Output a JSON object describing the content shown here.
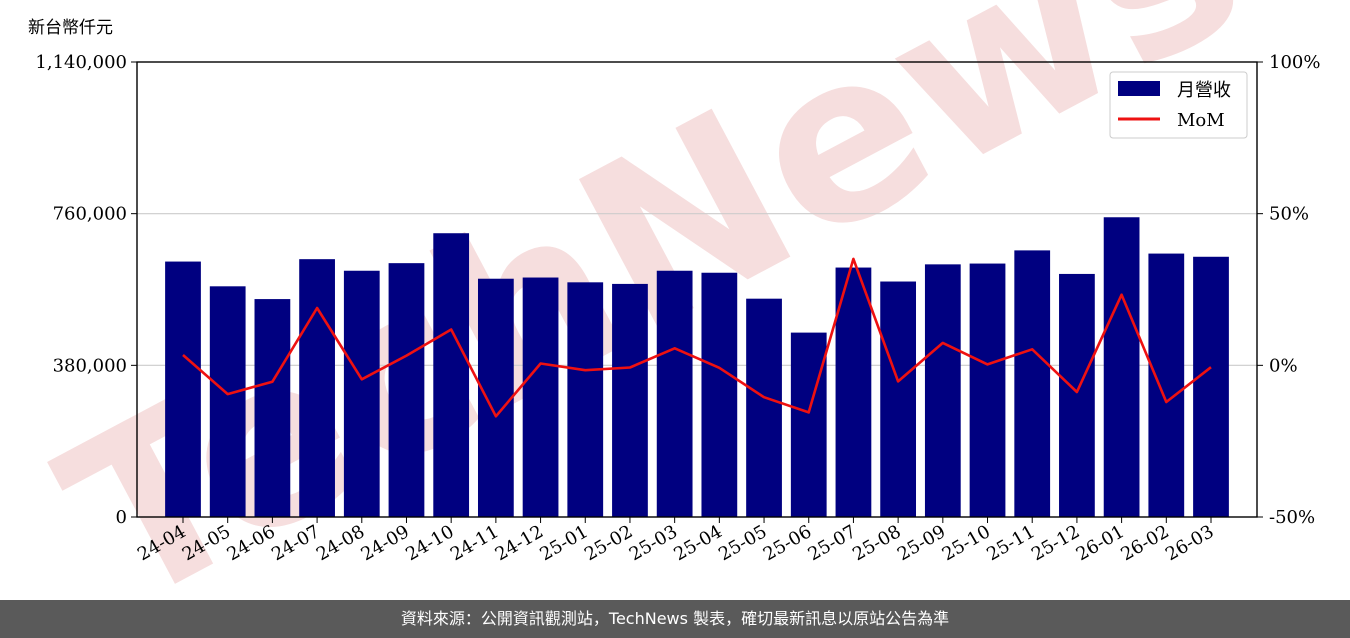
{
  "unit_label": "新台幣仟元",
  "watermark": "TechNews",
  "footer_text": "資料來源：公開資訊觀測站，TechNews 製表，確切最新訊息以原站公告為準",
  "colors": {
    "bar": "#000080",
    "line": "#ee1111",
    "grid": "#cccccc",
    "footer_bg": "#5a5a5a",
    "watermark": "#f6dede"
  },
  "chart_data": {
    "type": "bar",
    "categories": [
      "24-04",
      "24-05",
      "24-06",
      "24-07",
      "24-08",
      "24-09",
      "24-10",
      "24-11",
      "24-12",
      "25-01",
      "25-02",
      "25-03",
      "25-04",
      "25-05",
      "25-06",
      "25-07",
      "25-08",
      "25-09",
      "25-10",
      "25-11",
      "25-12",
      "26-01",
      "26-02",
      "26-03"
    ],
    "series": [
      {
        "name": "月營收",
        "type": "bar",
        "axis": "left",
        "values": [
          640000,
          578000,
          546000,
          646000,
          617000,
          636000,
          711000,
          597000,
          600000,
          588000,
          584000,
          617000,
          612000,
          547000,
          462000,
          625000,
          590000,
          633000,
          635000,
          668000,
          609000,
          751000,
          660000,
          652000
        ]
      },
      {
        "name": "MoM",
        "type": "line",
        "axis": "right",
        "unit": "%",
        "values": [
          3.4,
          -9.5,
          -5.4,
          18.9,
          -4.6,
          3.2,
          11.8,
          -16.8,
          0.6,
          -1.6,
          -0.7,
          5.6,
          -0.8,
          -10.5,
          -15.5,
          35.1,
          -5.3,
          7.4,
          0.3,
          5.3,
          -8.8,
          23.3,
          -12.1,
          -0.6
        ]
      }
    ],
    "ylim_left": [
      0,
      1140000
    ],
    "yticks_left": [
      "0",
      "380,000",
      "760,000",
      "1,140,000"
    ],
    "ylim_right": [
      -50,
      100
    ],
    "yticks_right": [
      "-50%",
      "0%",
      "50%",
      "100%"
    ],
    "grid": "horizontal",
    "legend": {
      "placement": "top-right",
      "entries": [
        "月營收",
        "MoM"
      ]
    }
  }
}
